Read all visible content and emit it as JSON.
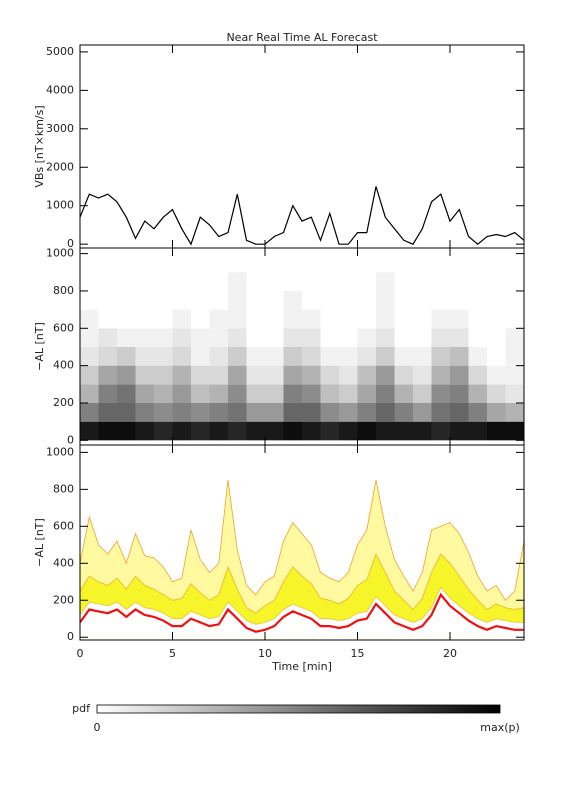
{
  "chart_data": [
    {
      "type": "line",
      "title": "Near Real Time AL Forecast",
      "ylabel": "VBs [nT×km/s]",
      "x": [
        0,
        0.5,
        1,
        1.5,
        2,
        2.5,
        3,
        3.5,
        4,
        4.5,
        5,
        5.5,
        6,
        6.5,
        7,
        7.5,
        8,
        8.5,
        9,
        9.5,
        10,
        10.5,
        11,
        11.5,
        12,
        12.5,
        13,
        13.5,
        14,
        14.5,
        15,
        15.5,
        16,
        16.5,
        17,
        17.5,
        18,
        18.5,
        19,
        19.5,
        20,
        20.5,
        21,
        21.5,
        22,
        22.5,
        23,
        23.5,
        24
      ],
      "values": [
        700,
        1300,
        1200,
        1300,
        1100,
        700,
        150,
        600,
        400,
        700,
        900,
        400,
        0,
        700,
        500,
        200,
        300,
        1300,
        100,
        0,
        0,
        200,
        300,
        1000,
        600,
        700,
        100,
        800,
        0,
        0,
        300,
        300,
        1500,
        700,
        400,
        100,
        0,
        400,
        1100,
        1300,
        600,
        900,
        200,
        0,
        200,
        250,
        200,
        300,
        100
      ],
      "color": "#000000",
      "xlim": [
        0,
        24
      ],
      "ylim": [
        -100,
        5180
      ],
      "yticks": [
        0,
        1000,
        2000,
        3000,
        4000,
        5000
      ]
    },
    {
      "type": "heatmap",
      "ylabel": "−AL [nT]",
      "xbins": [
        0,
        1,
        2,
        3,
        4,
        5,
        6,
        7,
        8,
        9,
        10,
        11,
        12,
        13,
        14,
        15,
        16,
        17,
        18,
        19,
        20,
        21,
        22,
        23,
        24
      ],
      "ybins": [
        0,
        100,
        200,
        300,
        400,
        500,
        600,
        700,
        800,
        900
      ],
      "z": [
        [
          0.9,
          0.95,
          0.95,
          0.9,
          0.85,
          0.9,
          0.85,
          0.9,
          0.85,
          0.9,
          0.9,
          0.95,
          0.9,
          0.85,
          0.9,
          0.95,
          0.9,
          0.9,
          0.9,
          0.85,
          0.9,
          0.9,
          0.95,
          0.95
        ],
        [
          0.5,
          0.6,
          0.6,
          0.5,
          0.45,
          0.5,
          0.45,
          0.5,
          0.55,
          0.4,
          0.4,
          0.6,
          0.6,
          0.45,
          0.4,
          0.5,
          0.6,
          0.5,
          0.4,
          0.55,
          0.6,
          0.5,
          0.35,
          0.3
        ],
        [
          0.3,
          0.5,
          0.55,
          0.35,
          0.3,
          0.4,
          0.25,
          0.3,
          0.45,
          0.2,
          0.2,
          0.5,
          0.45,
          0.25,
          0.2,
          0.35,
          0.5,
          0.3,
          0.2,
          0.45,
          0.5,
          0.3,
          0.15,
          0.1
        ],
        [
          0.2,
          0.35,
          0.4,
          0.2,
          0.2,
          0.3,
          0.15,
          0.15,
          0.35,
          0.1,
          0.1,
          0.35,
          0.3,
          0.15,
          0.1,
          0.25,
          0.4,
          0.15,
          0.1,
          0.3,
          0.4,
          0.15,
          0.05,
          0.05
        ],
        [
          0.1,
          0.15,
          0.2,
          0.1,
          0.1,
          0.15,
          0.05,
          0.1,
          0.2,
          0.05,
          0.05,
          0.2,
          0.15,
          0.05,
          0.05,
          0.1,
          0.2,
          0.05,
          0.05,
          0.2,
          0.25,
          0.05,
          0,
          0.05
        ],
        [
          0.05,
          0.1,
          0.05,
          0.05,
          0.05,
          0.1,
          0.05,
          0.05,
          0.1,
          0,
          0,
          0.1,
          0.1,
          0,
          0,
          0.05,
          0.1,
          0,
          0,
          0.1,
          0.1,
          0,
          0,
          0.05
        ],
        [
          0.05,
          0,
          0,
          0,
          0,
          0.05,
          0,
          0.05,
          0.05,
          0,
          0,
          0.05,
          0.05,
          0,
          0,
          0,
          0.05,
          0,
          0,
          0.05,
          0.05,
          0,
          0,
          0
        ],
        [
          0,
          0,
          0,
          0,
          0,
          0,
          0,
          0,
          0.05,
          0,
          0,
          0.05,
          0,
          0,
          0,
          0,
          0.05,
          0,
          0,
          0,
          0,
          0,
          0,
          0
        ],
        [
          0,
          0,
          0,
          0,
          0,
          0,
          0,
          0,
          0.05,
          0,
          0,
          0,
          0,
          0,
          0,
          0,
          0.05,
          0,
          0,
          0,
          0,
          0,
          0,
          0
        ]
      ],
      "colorbar": {
        "title": "pdf",
        "min_label": "0",
        "max_label": "max(p)"
      },
      "xlim": [
        0,
        24
      ],
      "ylim": [
        -25,
        1030
      ],
      "yticks": [
        0,
        200,
        400,
        600,
        800,
        1000
      ]
    },
    {
      "type": "area",
      "ylabel": "−AL [nT]",
      "xlabel": "Time [min]",
      "x": [
        0,
        0.5,
        1,
        1.5,
        2,
        2.5,
        3,
        3.5,
        4,
        4.5,
        5,
        5.5,
        6,
        6.5,
        7,
        7.5,
        8,
        8.5,
        9,
        9.5,
        10,
        10.5,
        11,
        11.5,
        12,
        12.5,
        13,
        13.5,
        14,
        14.5,
        15,
        15.5,
        16,
        16.5,
        17,
        17.5,
        18,
        18.5,
        19,
        19.5,
        20,
        20.5,
        21,
        21.5,
        22,
        22.5,
        23,
        23.5,
        24
      ],
      "series": [
        {
          "color": "#fffaa0",
          "line_color": "#f0a030",
          "fill": true,
          "values": [
            400,
            650,
            500,
            450,
            520,
            400,
            560,
            440,
            430,
            380,
            300,
            320,
            580,
            420,
            350,
            400,
            850,
            470,
            280,
            230,
            300,
            330,
            520,
            620,
            560,
            500,
            350,
            320,
            300,
            350,
            500,
            580,
            850,
            600,
            420,
            330,
            250,
            350,
            580,
            600,
            620,
            560,
            460,
            330,
            250,
            280,
            200,
            250,
            520
          ]
        },
        {
          "color": "#f5f52a",
          "line_color": "#f0b030",
          "fill": true,
          "values": [
            250,
            330,
            300,
            280,
            320,
            260,
            330,
            280,
            260,
            230,
            200,
            210,
            290,
            240,
            200,
            230,
            380,
            260,
            160,
            130,
            170,
            200,
            300,
            380,
            330,
            290,
            210,
            200,
            180,
            210,
            280,
            310,
            450,
            350,
            250,
            200,
            150,
            210,
            350,
            450,
            400,
            330,
            260,
            200,
            150,
            180,
            160,
            150,
            160
          ]
        },
        {
          "color": "#ffffff",
          "line_color": "#f0c040",
          "fill": true,
          "values": [
            120,
            190,
            180,
            170,
            190,
            150,
            190,
            160,
            150,
            130,
            100,
            100,
            140,
            120,
            100,
            110,
            190,
            140,
            90,
            70,
            80,
            100,
            150,
            180,
            160,
            140,
            100,
            100,
            90,
            100,
            130,
            140,
            220,
            170,
            120,
            100,
            80,
            100,
            160,
            270,
            210,
            170,
            130,
            100,
            80,
            100,
            90,
            80,
            80
          ]
        },
        {
          "color": "#ee1111",
          "line_color": "#ee1111",
          "fill": false,
          "values": [
            80,
            150,
            140,
            130,
            150,
            110,
            150,
            120,
            110,
            90,
            60,
            60,
            100,
            80,
            60,
            70,
            150,
            100,
            50,
            30,
            40,
            60,
            110,
            140,
            120,
            100,
            60,
            60,
            50,
            60,
            90,
            100,
            180,
            130,
            80,
            60,
            40,
            60,
            120,
            230,
            170,
            130,
            90,
            60,
            40,
            60,
            50,
            40,
            40
          ]
        }
      ],
      "xlim": [
        0,
        24
      ],
      "ylim": [
        -15,
        1040
      ],
      "yticks": [
        0,
        200,
        400,
        600,
        800,
        1000
      ],
      "xticks": [
        0,
        5,
        10,
        15,
        20
      ]
    }
  ]
}
